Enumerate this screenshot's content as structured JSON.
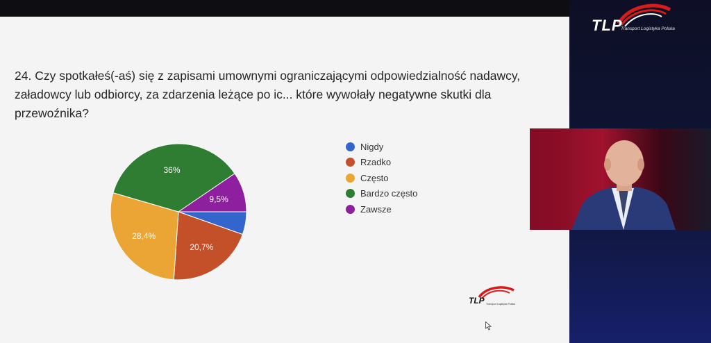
{
  "question": {
    "line1": "24. Czy spotkałeś(-aś) się z zapisami umownymi ograniczającymi odpowiedzialność nadawcy,",
    "line2": "załadowcy lub odbiorcy, za zdarzenia leżące po ic... które wywołały negatywne skutki dla przewoźnika?"
  },
  "brand": {
    "name": "TLP",
    "subtitle": "Transport Logistyka Polska"
  },
  "colors": {
    "blue": "#3366cc",
    "red": "#c4502a",
    "orange": "#eba534",
    "green": "#2e7d32",
    "purple": "#8e1f9e",
    "brand_red": "#d81b1b"
  },
  "icons": [
    "tlp-logo-icon",
    "cursor-icon",
    "presenter-video"
  ],
  "chart_data": {
    "type": "pie",
    "title": "",
    "legend_position": "right",
    "categories": [
      "Nigdy",
      "Rzadko",
      "Często",
      "Bardzo często",
      "Zawsze"
    ],
    "values": [
      5.4,
      20.7,
      28.4,
      36,
      9.5
    ],
    "labels": [
      "",
      "20,7%",
      "28,4%",
      "36%",
      "9,5%"
    ],
    "colors": [
      "#3366cc",
      "#c4502a",
      "#eba534",
      "#2e7d32",
      "#8e1f9e"
    ]
  }
}
